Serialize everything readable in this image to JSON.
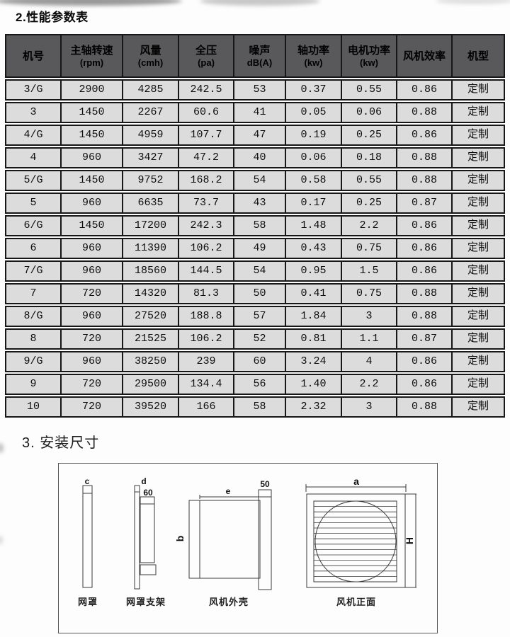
{
  "page": {
    "section2_title": "2.性能参数表",
    "section3_title": "3. 安装尺寸"
  },
  "table": {
    "headers": [
      {
        "line1": "机号",
        "line2": ""
      },
      {
        "line1": "主轴转速",
        "line2": "(rpm)"
      },
      {
        "line1": "风量",
        "line2": "(cmh)"
      },
      {
        "line1": "全压",
        "line2": "(pa)"
      },
      {
        "line1": "噪声",
        "line2": "dB(A)"
      },
      {
        "line1": "轴功率",
        "line2": "(kw)"
      },
      {
        "line1": "电机功率",
        "line2": "(kw)"
      },
      {
        "line1": "风机效率",
        "line2": ""
      },
      {
        "line1": "机型",
        "line2": ""
      }
    ],
    "rows": [
      [
        "3/G",
        "2900",
        "4285",
        "242.5",
        "53",
        "0.37",
        "0.55",
        "0.86",
        "定制"
      ],
      [
        "3",
        "1450",
        "2267",
        "60.6",
        "41",
        "0.05",
        "0.06",
        "0.88",
        "定制"
      ],
      [
        "4/G",
        "1450",
        "4959",
        "107.7",
        "47",
        "0.19",
        "0.25",
        "0.86",
        "定制"
      ],
      [
        "4",
        "960",
        "3427",
        "47.2",
        "40",
        "0.06",
        "0.18",
        "0.88",
        "定制"
      ],
      [
        "5/G",
        "1450",
        "9752",
        "168.2",
        "54",
        "0.58",
        "0.55",
        "0.88",
        "定制"
      ],
      [
        "5",
        "960",
        "6635",
        "73.7",
        "43",
        "0.17",
        "0.25",
        "0.87",
        "定制"
      ],
      [
        "6/G",
        "1450",
        "17200",
        "242.3",
        "58",
        "1.48",
        "2.2",
        "0.86",
        "定制"
      ],
      [
        "6",
        "960",
        "11390",
        "106.2",
        "49",
        "0.43",
        "0.75",
        "0.86",
        "定制"
      ],
      [
        "7/G",
        "960",
        "18560",
        "144.5",
        "54",
        "0.95",
        "1.5",
        "0.86",
        "定制"
      ],
      [
        "7",
        "720",
        "14320",
        "81.3",
        "50",
        "0.41",
        "0.75",
        "0.88",
        "定制"
      ],
      [
        "8/G",
        "960",
        "27520",
        "188.8",
        "57",
        "1.84",
        "3",
        "0.88",
        "定制"
      ],
      [
        "8",
        "720",
        "21525",
        "106.2",
        "52",
        "0.81",
        "1.1",
        "0.87",
        "定制"
      ],
      [
        "9/G",
        "960",
        "38250",
        "239",
        "60",
        "3.24",
        "4",
        "0.86",
        "定制"
      ],
      [
        "9",
        "720",
        "29500",
        "134.4",
        "56",
        "1.40",
        "2.2",
        "0.86",
        "定制"
      ],
      [
        "10",
        "720",
        "39520",
        "166",
        "58",
        "2.32",
        "3",
        "0.88",
        "定制"
      ]
    ]
  },
  "diagram": {
    "dims": {
      "c": "c",
      "d": "d",
      "sixty": "60",
      "e": "e",
      "b": "b",
      "fifty": "50",
      "a": "a",
      "h": "H"
    },
    "parts": {
      "mesh_cover": "网罩",
      "mesh_bracket": "网罩支架",
      "fan_housing": "风机外壳",
      "fan_front": "风机正面"
    }
  },
  "colors": {
    "header_bg": "#59595b",
    "cell_bg": "#dcdcdc",
    "border": "#171717",
    "line": "#3c3c3c"
  }
}
